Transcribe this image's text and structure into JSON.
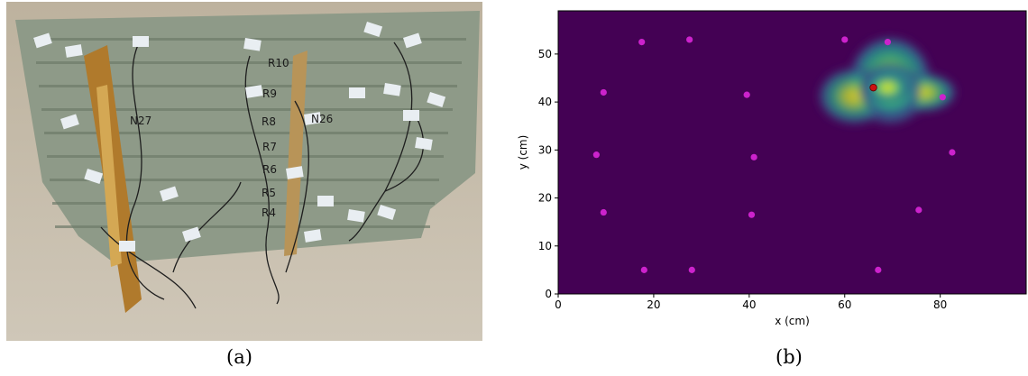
{
  "captions": {
    "a": "(a)",
    "b": "(b)"
  },
  "photo": {
    "labels": [
      "R10",
      "R9",
      "N27",
      "R8",
      "N26",
      "R7",
      "R6",
      "R5",
      "R4"
    ]
  },
  "chart_data": {
    "type": "heatmap",
    "xlabel": "x (cm)",
    "ylabel": "y (cm)",
    "xlim": [
      0,
      98
    ],
    "ylim": [
      0,
      59
    ],
    "xticks": [
      0,
      20,
      40,
      60,
      80
    ],
    "yticks": [
      0,
      10,
      20,
      30,
      40,
      50
    ],
    "background_color": "#440154",
    "colormap": "viridis",
    "hotspot": {
      "peak": [
        69,
        43
      ],
      "extent_x": [
        53,
        83
      ],
      "extent_y": [
        34,
        53
      ]
    },
    "sensors": [
      {
        "x": 17.5,
        "y": 52.5
      },
      {
        "x": 27.5,
        "y": 53
      },
      {
        "x": 60,
        "y": 53
      },
      {
        "x": 69,
        "y": 52.5
      },
      {
        "x": 9.5,
        "y": 42
      },
      {
        "x": 39.5,
        "y": 41.5
      },
      {
        "x": 80.5,
        "y": 41
      },
      {
        "x": 8,
        "y": 29
      },
      {
        "x": 41,
        "y": 28.5
      },
      {
        "x": 82.5,
        "y": 29.5
      },
      {
        "x": 9.5,
        "y": 17
      },
      {
        "x": 40.5,
        "y": 16.5
      },
      {
        "x": 75.5,
        "y": 17.5
      },
      {
        "x": 18,
        "y": 5
      },
      {
        "x": 28,
        "y": 5
      },
      {
        "x": 67,
        "y": 5
      }
    ],
    "sensor_color": "#cc22cc",
    "estimated_source": {
      "x": 66,
      "y": 43
    },
    "source_color": "#cc1111"
  }
}
